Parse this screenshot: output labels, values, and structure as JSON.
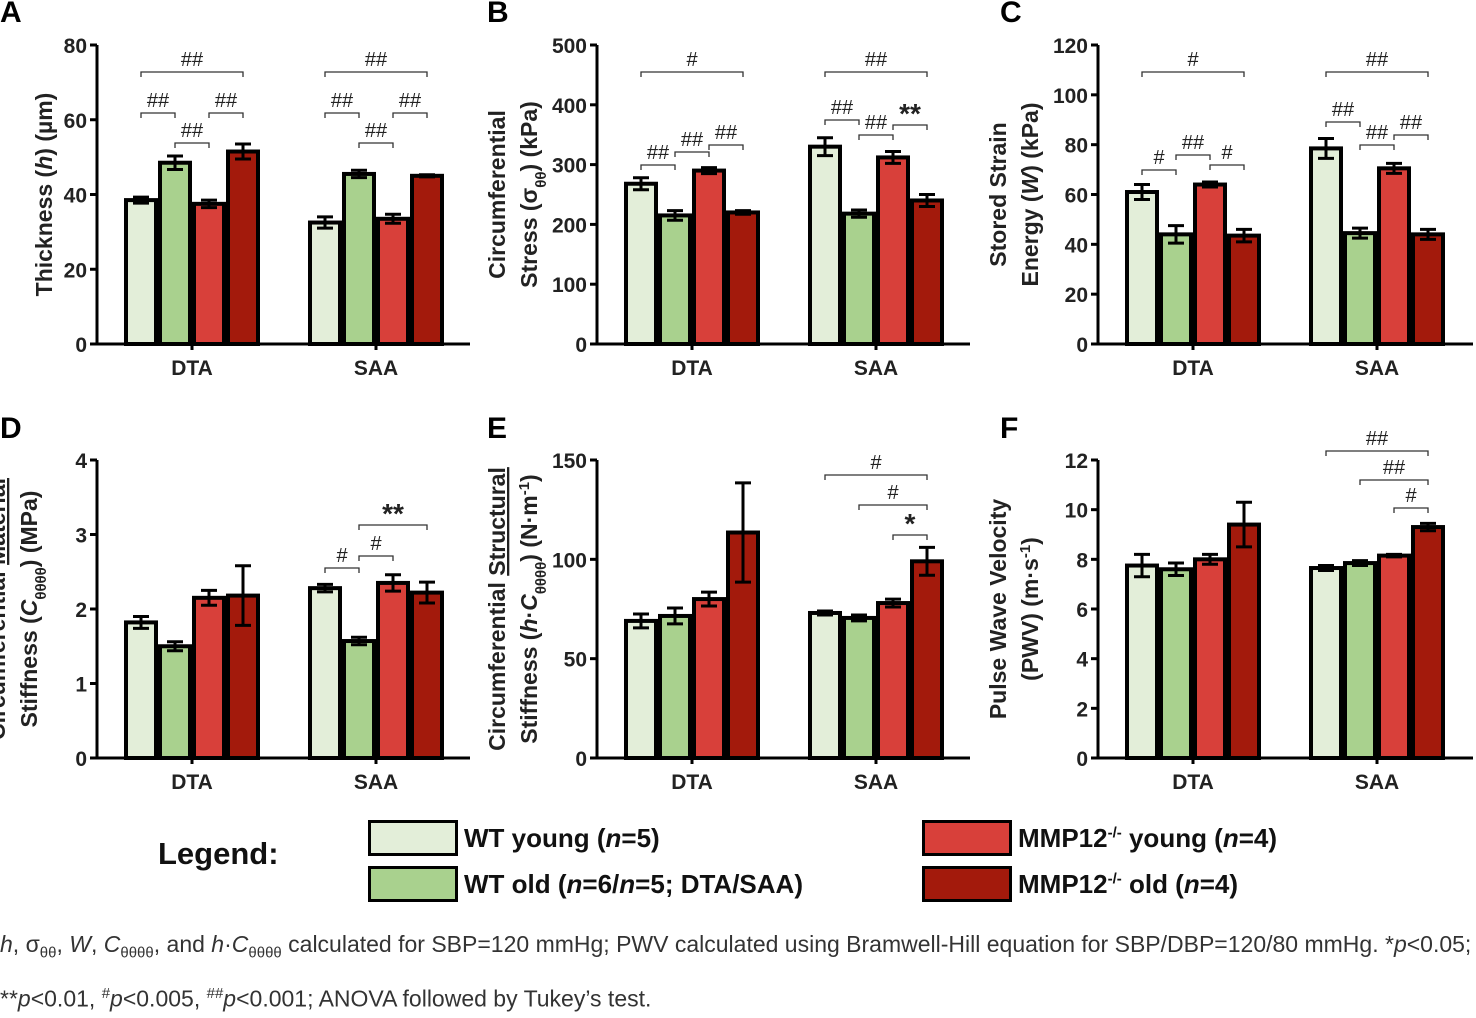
{
  "colors": {
    "wt_young": "#e3eed9",
    "wt_old": "#a9d18e",
    "mmp_young": "#d8403a",
    "mmp_old": "#a31a0c"
  },
  "legend": {
    "title": "Legend:",
    "items": [
      {
        "key": "wt_young",
        "parts": [
          [
            "WT young (",
            ""
          ],
          [
            "n",
            "i"
          ],
          [
            "=5)",
            ""
          ]
        ]
      },
      {
        "key": "wt_old",
        "parts": [
          [
            "WT old (",
            ""
          ],
          [
            "n",
            "i"
          ],
          [
            "=6/",
            ""
          ],
          [
            "n",
            "i"
          ],
          [
            "=5; DTA/SAA)",
            ""
          ]
        ]
      },
      {
        "key": "mmp_young",
        "parts": [
          [
            "MMP12",
            ""
          ],
          [
            "-/-",
            "sup"
          ],
          [
            " young (",
            ""
          ],
          [
            "n",
            "i"
          ],
          [
            "=4)",
            ""
          ]
        ]
      },
      {
        "key": "mmp_old",
        "parts": [
          [
            "MMP12",
            ""
          ],
          [
            "-/-",
            "sup"
          ],
          [
            " old (",
            ""
          ],
          [
            "n",
            "i"
          ],
          [
            "=4)",
            ""
          ]
        ]
      }
    ]
  },
  "footnote": [
    [
      "h",
      "i"
    ],
    [
      ", σ",
      ""
    ],
    [
      "θθ",
      "sub"
    ],
    [
      ", ",
      ""
    ],
    [
      "W",
      "i"
    ],
    [
      ", ",
      ""
    ],
    [
      "C",
      "i"
    ],
    [
      "θθθθ",
      "sub"
    ],
    [
      ", and ",
      ""
    ],
    [
      "h",
      "i"
    ],
    [
      "·",
      ""
    ],
    [
      "C",
      "i"
    ],
    [
      "θθθθ",
      "sub"
    ],
    [
      " calculated for SBP=120 mmHg; PWV calculated using Bramwell-Hill equation for SBP/DBP=120/80 mmHg. *",
      ""
    ],
    [
      "p",
      "i"
    ],
    [
      "<0.05; **",
      ""
    ],
    [
      "p",
      "i"
    ],
    [
      "<0.01, ",
      ""
    ],
    [
      "#",
      "sup"
    ],
    [
      "p",
      "i"
    ],
    [
      "<0.005, ",
      ""
    ],
    [
      "##",
      "sup"
    ],
    [
      "p",
      "i"
    ],
    [
      "<0.001; ANOVA followed by Tukey’s test.",
      ""
    ]
  ],
  "chart_data": [
    {
      "panel": "A",
      "type": "bar",
      "categories": [
        "DTA",
        "SAA"
      ],
      "ylim": [
        0,
        80
      ],
      "yticks": [
        0,
        20,
        40,
        60,
        80
      ],
      "ylabel": [
        [
          [
            "Thickness (",
            ""
          ],
          [
            "h",
            "i"
          ],
          [
            ") (µm)",
            ""
          ]
        ]
      ],
      "series": [
        {
          "key": "wt_young",
          "values": [
            38.5,
            32.5
          ],
          "errors": [
            0.8,
            1.5
          ]
        },
        {
          "key": "wt_old",
          "values": [
            48.5,
            45.5
          ],
          "errors": [
            1.8,
            1.0
          ]
        },
        {
          "key": "mmp_young",
          "values": [
            37.5,
            33.5
          ],
          "errors": [
            1.0,
            1.2
          ]
        },
        {
          "key": "mmp_old",
          "values": [
            51.5,
            45.0
          ],
          "errors": [
            2.0,
            0.3
          ]
        }
      ],
      "annotations": [
        {
          "category": "DTA",
          "from": 0,
          "to": 3,
          "label": "##"
        },
        {
          "category": "DTA",
          "from": 0,
          "to": 1,
          "label": "##"
        },
        {
          "category": "DTA",
          "from": 2,
          "to": 3,
          "label": "##"
        },
        {
          "category": "DTA",
          "from": 1,
          "to": 2,
          "label": "##"
        },
        {
          "category": "SAA",
          "from": 0,
          "to": 3,
          "label": "##"
        },
        {
          "category": "SAA",
          "from": 0,
          "to": 1,
          "label": "##"
        },
        {
          "category": "SAA",
          "from": 2,
          "to": 3,
          "label": "##"
        },
        {
          "category": "SAA",
          "from": 1,
          "to": 2,
          "label": "##"
        }
      ]
    },
    {
      "panel": "B",
      "type": "bar",
      "categories": [
        "DTA",
        "SAA"
      ],
      "ylim": [
        0,
        500
      ],
      "yticks": [
        0,
        100,
        200,
        300,
        400,
        500
      ],
      "ylabel": [
        [
          [
            "Circumferential",
            ""
          ]
        ],
        [
          [
            "Stress (σ",
            ""
          ],
          [
            "θθ",
            "sub"
          ],
          [
            ") (kPa)",
            ""
          ]
        ]
      ],
      "series": [
        {
          "key": "wt_young",
          "values": [
            268,
            330
          ],
          "errors": [
            10,
            15
          ]
        },
        {
          "key": "wt_old",
          "values": [
            215,
            218
          ],
          "errors": [
            8,
            6
          ]
        },
        {
          "key": "mmp_young",
          "values": [
            290,
            312
          ],
          "errors": [
            5,
            10
          ]
        },
        {
          "key": "mmp_old",
          "values": [
            220,
            240
          ],
          "errors": [
            3,
            10
          ]
        }
      ],
      "annotations": [
        {
          "category": "DTA",
          "from": 0,
          "to": 3,
          "label": "#"
        },
        {
          "category": "DTA",
          "from": 0,
          "to": 1,
          "label": "##"
        },
        {
          "category": "DTA",
          "from": 1,
          "to": 2,
          "label": "##"
        },
        {
          "category": "DTA",
          "from": 2,
          "to": 3,
          "label": "##"
        },
        {
          "category": "SAA",
          "from": 0,
          "to": 3,
          "label": "##"
        },
        {
          "category": "SAA",
          "from": 0,
          "to": 1,
          "label": "##"
        },
        {
          "category": "SAA",
          "from": 1,
          "to": 2,
          "label": "##"
        },
        {
          "category": "SAA",
          "from": 2,
          "to": 3,
          "label": "**"
        }
      ]
    },
    {
      "panel": "C",
      "type": "bar",
      "categories": [
        "DTA",
        "SAA"
      ],
      "ylim": [
        0,
        120
      ],
      "yticks": [
        0,
        20,
        40,
        60,
        80,
        100,
        120
      ],
      "ylabel": [
        [
          [
            "Stored Strain",
            ""
          ]
        ],
        [
          [
            "Energy (",
            ""
          ],
          [
            "W",
            "i"
          ],
          [
            ") (kPa)",
            ""
          ]
        ]
      ],
      "series": [
        {
          "key": "wt_young",
          "values": [
            61,
            78.5
          ],
          "errors": [
            3,
            4
          ]
        },
        {
          "key": "wt_old",
          "values": [
            44,
            44.5
          ],
          "errors": [
            3.5,
            2
          ]
        },
        {
          "key": "mmp_young",
          "values": [
            64,
            70.5
          ],
          "errors": [
            1,
            2
          ]
        },
        {
          "key": "mmp_old",
          "values": [
            43.5,
            44
          ],
          "errors": [
            2.5,
            2
          ]
        }
      ],
      "annotations": [
        {
          "category": "DTA",
          "from": 0,
          "to": 3,
          "label": "#"
        },
        {
          "category": "DTA",
          "from": 0,
          "to": 1,
          "label": "#"
        },
        {
          "category": "DTA",
          "from": 1,
          "to": 2,
          "label": "##"
        },
        {
          "category": "DTA",
          "from": 2,
          "to": 3,
          "label": "#"
        },
        {
          "category": "SAA",
          "from": 0,
          "to": 3,
          "label": "##"
        },
        {
          "category": "SAA",
          "from": 0,
          "to": 1,
          "label": "##"
        },
        {
          "category": "SAA",
          "from": 1,
          "to": 2,
          "label": "##"
        },
        {
          "category": "SAA",
          "from": 2,
          "to": 3,
          "label": "##"
        }
      ]
    },
    {
      "panel": "D",
      "type": "bar",
      "categories": [
        "DTA",
        "SAA"
      ],
      "ylim": [
        0,
        4
      ],
      "yticks": [
        0,
        1,
        2,
        3,
        4
      ],
      "ylabel": [
        [
          [
            "Circumferential ",
            ""
          ],
          [
            "Material",
            "u"
          ]
        ],
        [
          [
            "Stiffness (",
            ""
          ],
          [
            "C",
            "i"
          ],
          [
            "θθθθ",
            "sub"
          ],
          [
            ") (MPa)",
            ""
          ]
        ]
      ],
      "series": [
        {
          "key": "wt_young",
          "values": [
            1.82,
            2.28
          ],
          "errors": [
            0.08,
            0.05
          ]
        },
        {
          "key": "wt_old",
          "values": [
            1.5,
            1.57
          ],
          "errors": [
            0.06,
            0.05
          ]
        },
        {
          "key": "mmp_young",
          "values": [
            2.15,
            2.35
          ],
          "errors": [
            0.1,
            0.11
          ]
        },
        {
          "key": "mmp_old",
          "values": [
            2.18,
            2.22
          ],
          "errors": [
            0.4,
            0.14
          ]
        }
      ],
      "annotations": [
        {
          "category": "SAA",
          "from": 0,
          "to": 1,
          "label": "#"
        },
        {
          "category": "SAA",
          "from": 1,
          "to": 2,
          "label": "#"
        },
        {
          "category": "SAA",
          "from": 1,
          "to": 3,
          "label": "**"
        }
      ]
    },
    {
      "panel": "E",
      "type": "bar",
      "categories": [
        "DTA",
        "SAA"
      ],
      "ylim": [
        0,
        150
      ],
      "yticks": [
        0,
        50,
        100,
        150
      ],
      "ylabel": [
        [
          [
            "Circumferential ",
            ""
          ],
          [
            "Structural",
            "u"
          ]
        ],
        [
          [
            "Stiffness (",
            ""
          ],
          [
            "h",
            "i"
          ],
          [
            "·",
            ""
          ],
          [
            "C",
            "i"
          ],
          [
            "θθθθ",
            "sub"
          ],
          [
            ") (N·m",
            ""
          ],
          [
            "-1",
            "sup"
          ],
          [
            ")",
            ""
          ]
        ]
      ],
      "series": [
        {
          "key": "wt_young",
          "values": [
            69,
            73
          ],
          "errors": [
            3.5,
            1
          ]
        },
        {
          "key": "wt_old",
          "values": [
            71.5,
            70.5
          ],
          "errors": [
            4,
            1.5
          ]
        },
        {
          "key": "mmp_young",
          "values": [
            80,
            78
          ],
          "errors": [
            3.5,
            2
          ]
        },
        {
          "key": "mmp_old",
          "values": [
            113.5,
            99
          ],
          "errors": [
            25,
            7
          ]
        }
      ],
      "annotations": [
        {
          "category": "SAA",
          "from": 0,
          "to": 3,
          "label": "#"
        },
        {
          "category": "SAA",
          "from": 1,
          "to": 3,
          "label": "#"
        },
        {
          "category": "SAA",
          "from": 2,
          "to": 3,
          "label": "*"
        }
      ]
    },
    {
      "panel": "F",
      "type": "bar",
      "categories": [
        "DTA",
        "SAA"
      ],
      "ylim": [
        0,
        12
      ],
      "yticks": [
        0,
        2,
        4,
        6,
        8,
        10,
        12
      ],
      "ylabel": [
        [
          [
            "Pulse Wave Velocity",
            ""
          ]
        ],
        [
          [
            "(PWV) (m·s",
            ""
          ],
          [
            "-1",
            "sup"
          ],
          [
            ")",
            ""
          ]
        ]
      ],
      "series": [
        {
          "key": "wt_young",
          "values": [
            7.75,
            7.65
          ],
          "errors": [
            0.45,
            0.1
          ]
        },
        {
          "key": "wt_old",
          "values": [
            7.6,
            7.85
          ],
          "errors": [
            0.25,
            0.1
          ]
        },
        {
          "key": "mmp_young",
          "values": [
            8.0,
            8.15
          ],
          "errors": [
            0.2,
            0.05
          ]
        },
        {
          "key": "mmp_old",
          "values": [
            9.4,
            9.3
          ],
          "errors": [
            0.9,
            0.15
          ]
        }
      ],
      "annotations": [
        {
          "category": "SAA",
          "from": 0,
          "to": 3,
          "label": "##"
        },
        {
          "category": "SAA",
          "from": 1,
          "to": 3,
          "label": "##"
        },
        {
          "category": "SAA",
          "from": 2,
          "to": 3,
          "label": "#"
        }
      ]
    }
  ]
}
